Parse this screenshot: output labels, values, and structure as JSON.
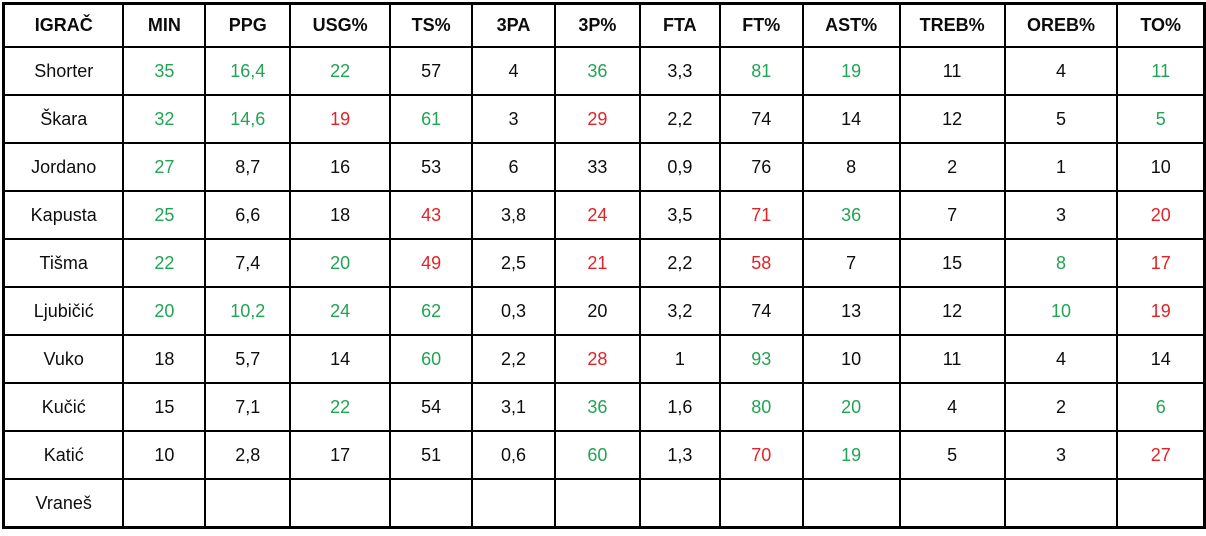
{
  "chart_data": {
    "type": "table",
    "title": "Player statistics table",
    "columns": [
      "IGRAČ",
      "MIN",
      "PPG",
      "USG%",
      "TS%",
      "3PA",
      "3P%",
      "FTA",
      "FT%",
      "AST%",
      "TREB%",
      "OREB%",
      "TO%"
    ],
    "rows": [
      {
        "player": "Shorter",
        "values": [
          "35",
          "16,4",
          "22",
          "57",
          "4",
          "36",
          "3,3",
          "81",
          "19",
          "11",
          "4",
          "11"
        ],
        "colors": [
          "green",
          "green",
          "green",
          "black",
          "black",
          "green",
          "black",
          "green",
          "green",
          "black",
          "black",
          "green"
        ]
      },
      {
        "player": "Škara",
        "values": [
          "32",
          "14,6",
          "19",
          "61",
          "3",
          "29",
          "2,2",
          "74",
          "14",
          "12",
          "5",
          "5"
        ],
        "colors": [
          "green",
          "green",
          "red",
          "green",
          "black",
          "red",
          "black",
          "black",
          "black",
          "black",
          "black",
          "green"
        ]
      },
      {
        "player": "Jordano",
        "values": [
          "27",
          "8,7",
          "16",
          "53",
          "6",
          "33",
          "0,9",
          "76",
          "8",
          "2",
          "1",
          "10"
        ],
        "colors": [
          "green",
          "black",
          "black",
          "black",
          "black",
          "black",
          "black",
          "black",
          "black",
          "black",
          "black",
          "black"
        ]
      },
      {
        "player": "Kapusta",
        "values": [
          "25",
          "6,6",
          "18",
          "43",
          "3,8",
          "24",
          "3,5",
          "71",
          "36",
          "7",
          "3",
          "20"
        ],
        "colors": [
          "green",
          "black",
          "black",
          "red",
          "black",
          "red",
          "black",
          "red",
          "green",
          "black",
          "black",
          "red"
        ]
      },
      {
        "player": "Tišma",
        "values": [
          "22",
          "7,4",
          "20",
          "49",
          "2,5",
          "21",
          "2,2",
          "58",
          "7",
          "15",
          "8",
          "17"
        ],
        "colors": [
          "green",
          "black",
          "green",
          "red",
          "black",
          "red",
          "black",
          "red",
          "black",
          "black",
          "green",
          "red"
        ]
      },
      {
        "player": "Ljubičić",
        "values": [
          "20",
          "10,2",
          "24",
          "62",
          "0,3",
          "20",
          "3,2",
          "74",
          "13",
          "12",
          "10",
          "19"
        ],
        "colors": [
          "green",
          "green",
          "green",
          "green",
          "black",
          "black",
          "black",
          "black",
          "black",
          "black",
          "green",
          "red"
        ]
      },
      {
        "player": "Vuko",
        "values": [
          "18",
          "5,7",
          "14",
          "60",
          "2,2",
          "28",
          "1",
          "93",
          "10",
          "11",
          "4",
          "14"
        ],
        "colors": [
          "black",
          "black",
          "black",
          "green",
          "black",
          "red",
          "black",
          "green",
          "black",
          "black",
          "black",
          "black"
        ]
      },
      {
        "player": "Kučić",
        "values": [
          "15",
          "7,1",
          "22",
          "54",
          "3,1",
          "36",
          "1,6",
          "80",
          "20",
          "4",
          "2",
          "6"
        ],
        "colors": [
          "black",
          "black",
          "green",
          "black",
          "black",
          "green",
          "black",
          "green",
          "green",
          "black",
          "black",
          "green"
        ]
      },
      {
        "player": "Katić",
        "values": [
          "10",
          "2,8",
          "17",
          "51",
          "0,6",
          "60",
          "1,3",
          "70",
          "19",
          "5",
          "3",
          "27"
        ],
        "colors": [
          "black",
          "black",
          "black",
          "black",
          "black",
          "green",
          "black",
          "red",
          "green",
          "black",
          "black",
          "red"
        ]
      },
      {
        "player": "Vraneš",
        "values": [
          "",
          "",
          "",
          "",
          "",
          "",
          "",
          "",
          "",
          "",
          "",
          ""
        ],
        "colors": [
          "black",
          "black",
          "black",
          "black",
          "black",
          "black",
          "black",
          "black",
          "black",
          "black",
          "black",
          "black"
        ]
      }
    ],
    "color_legend": {
      "green": "#21a453",
      "red": "#e32227",
      "black": "#0e0e0e"
    },
    "layout_hints": {
      "grid": "on",
      "header_bold": true,
      "cell_alignment": "center",
      "decimal_separator": ","
    }
  }
}
